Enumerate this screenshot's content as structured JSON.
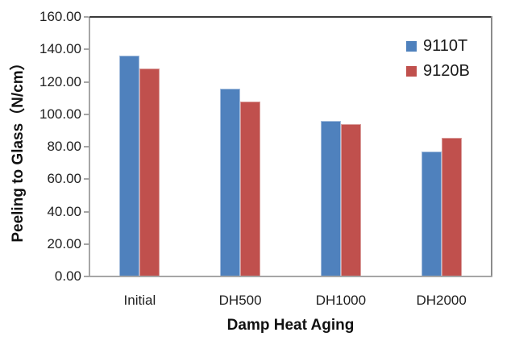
{
  "chart_data": {
    "type": "bar",
    "title": "",
    "categories": [
      "Initial",
      "DH500",
      "DH1000",
      "DH2000"
    ],
    "series": [
      {
        "name": "9110T",
        "color": "#4f81bd",
        "edge_color": "#a3bcdd",
        "values": [
          136,
          116,
          96,
          77
        ]
      },
      {
        "name": "9120B",
        "color": "#c0504d",
        "edge_color": "#d99b99",
        "values": [
          128,
          108,
          94,
          85.5
        ]
      }
    ],
    "xlabel": "Damp Heat Aging",
    "ylabel": "Peeling to Glass（N/cm）",
    "ylim": [
      0,
      160
    ],
    "ytick_step": 20,
    "ytick_labels": [
      "0.00",
      "20.00",
      "40.00",
      "60.00",
      "80.00",
      "100.00",
      "120.00",
      "140.00",
      "160.00"
    ],
    "grid": false,
    "legend_position": "inside-top-right",
    "axis_colors": {
      "plot_border_top": "#3a3a3a",
      "plot_border_right": "#8c8c8c",
      "axis_line": "#a6a6a6"
    }
  }
}
